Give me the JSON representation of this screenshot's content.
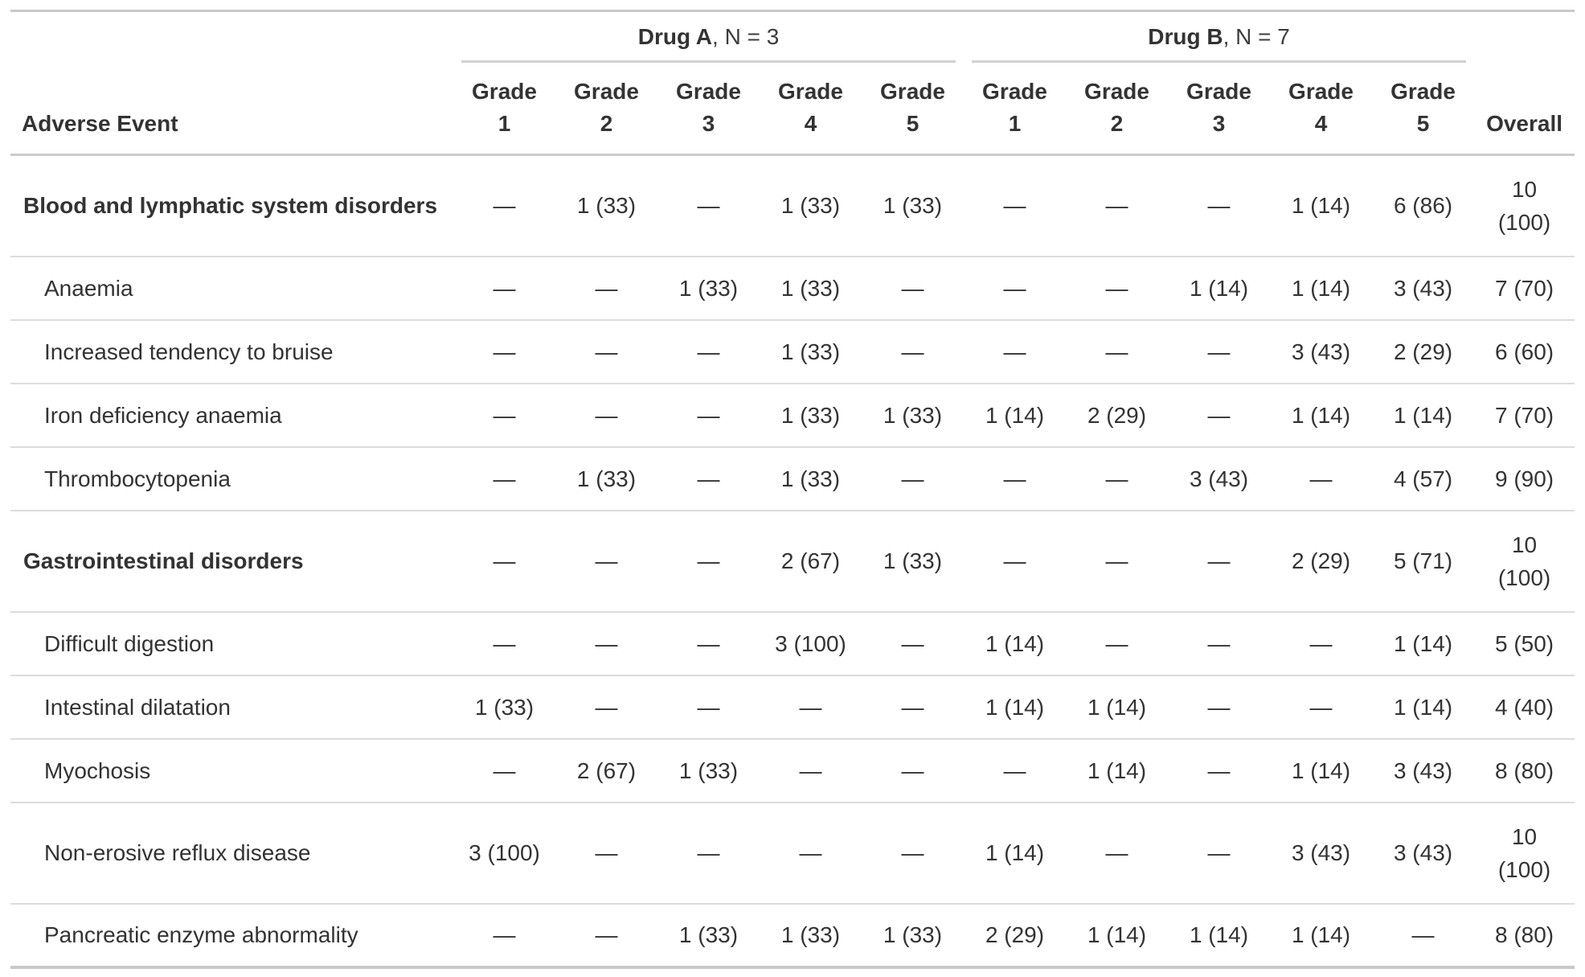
{
  "table": {
    "row_label_header": "Adverse Event",
    "overall_header": "Overall",
    "grade_word": "Grade",
    "spanners": [
      {
        "drug": "Drug A",
        "n_label": ", N = 3",
        "grade_numbers": [
          "1",
          "2",
          "3",
          "4",
          "5"
        ]
      },
      {
        "drug": "Drug B",
        "n_label": ", N = 7",
        "grade_numbers": [
          "1",
          "2",
          "3",
          "4",
          "5"
        ]
      }
    ],
    "rows": [
      {
        "label": "Blood and lymphatic system disorders",
        "group": true,
        "values": [
          "—",
          "1 (33)",
          "—",
          "1 (33)",
          "1 (33)",
          "—",
          "—",
          "—",
          "1 (14)",
          "6 (86)",
          "10 (100)"
        ]
      },
      {
        "label": "Anaemia",
        "group": false,
        "values": [
          "—",
          "—",
          "1 (33)",
          "1 (33)",
          "—",
          "—",
          "—",
          "1 (14)",
          "1 (14)",
          "3 (43)",
          "7 (70)"
        ]
      },
      {
        "label": "Increased tendency to bruise",
        "group": false,
        "values": [
          "—",
          "—",
          "—",
          "1 (33)",
          "—",
          "—",
          "—",
          "—",
          "3 (43)",
          "2 (29)",
          "6 (60)"
        ]
      },
      {
        "label": "Iron deficiency anaemia",
        "group": false,
        "values": [
          "—",
          "—",
          "—",
          "1 (33)",
          "1 (33)",
          "1 (14)",
          "2 (29)",
          "—",
          "1 (14)",
          "1 (14)",
          "7 (70)"
        ]
      },
      {
        "label": "Thrombocytopenia",
        "group": false,
        "values": [
          "—",
          "1 (33)",
          "—",
          "1 (33)",
          "—",
          "—",
          "—",
          "3 (43)",
          "—",
          "4 (57)",
          "9 (90)"
        ]
      },
      {
        "label": "Gastrointestinal disorders",
        "group": true,
        "values": [
          "—",
          "—",
          "—",
          "2 (67)",
          "1 (33)",
          "—",
          "—",
          "—",
          "2 (29)",
          "5 (71)",
          "10 (100)"
        ]
      },
      {
        "label": "Difficult digestion",
        "group": false,
        "values": [
          "—",
          "—",
          "—",
          "3 (100)",
          "—",
          "1 (14)",
          "—",
          "—",
          "—",
          "1 (14)",
          "5 (50)"
        ]
      },
      {
        "label": "Intestinal dilatation",
        "group": false,
        "values": [
          "1 (33)",
          "—",
          "—",
          "—",
          "—",
          "1 (14)",
          "1 (14)",
          "—",
          "—",
          "1 (14)",
          "4 (40)"
        ]
      },
      {
        "label": "Myochosis",
        "group": false,
        "values": [
          "—",
          "2 (67)",
          "1 (33)",
          "—",
          "—",
          "—",
          "1 (14)",
          "—",
          "1 (14)",
          "3 (43)",
          "8 (80)"
        ]
      },
      {
        "label": "Non-erosive reflux disease",
        "group": false,
        "values": [
          "3 (100)",
          "—",
          "—",
          "—",
          "—",
          "1 (14)",
          "—",
          "—",
          "3 (43)",
          "3 (43)",
          "10 (100)"
        ]
      },
      {
        "label": "Pancreatic enzyme abnormality",
        "group": false,
        "values": [
          "—",
          "—",
          "1 (33)",
          "1 (33)",
          "1 (33)",
          "2 (29)",
          "1 (14)",
          "1 (14)",
          "1 (14)",
          "—",
          "8 (80)"
        ]
      }
    ]
  },
  "colors": {
    "text": "#333333",
    "rule_heavy": "#c9c9c9",
    "rule_light": "#dcdcdc",
    "spanner_rule": "#d2d2d2"
  }
}
